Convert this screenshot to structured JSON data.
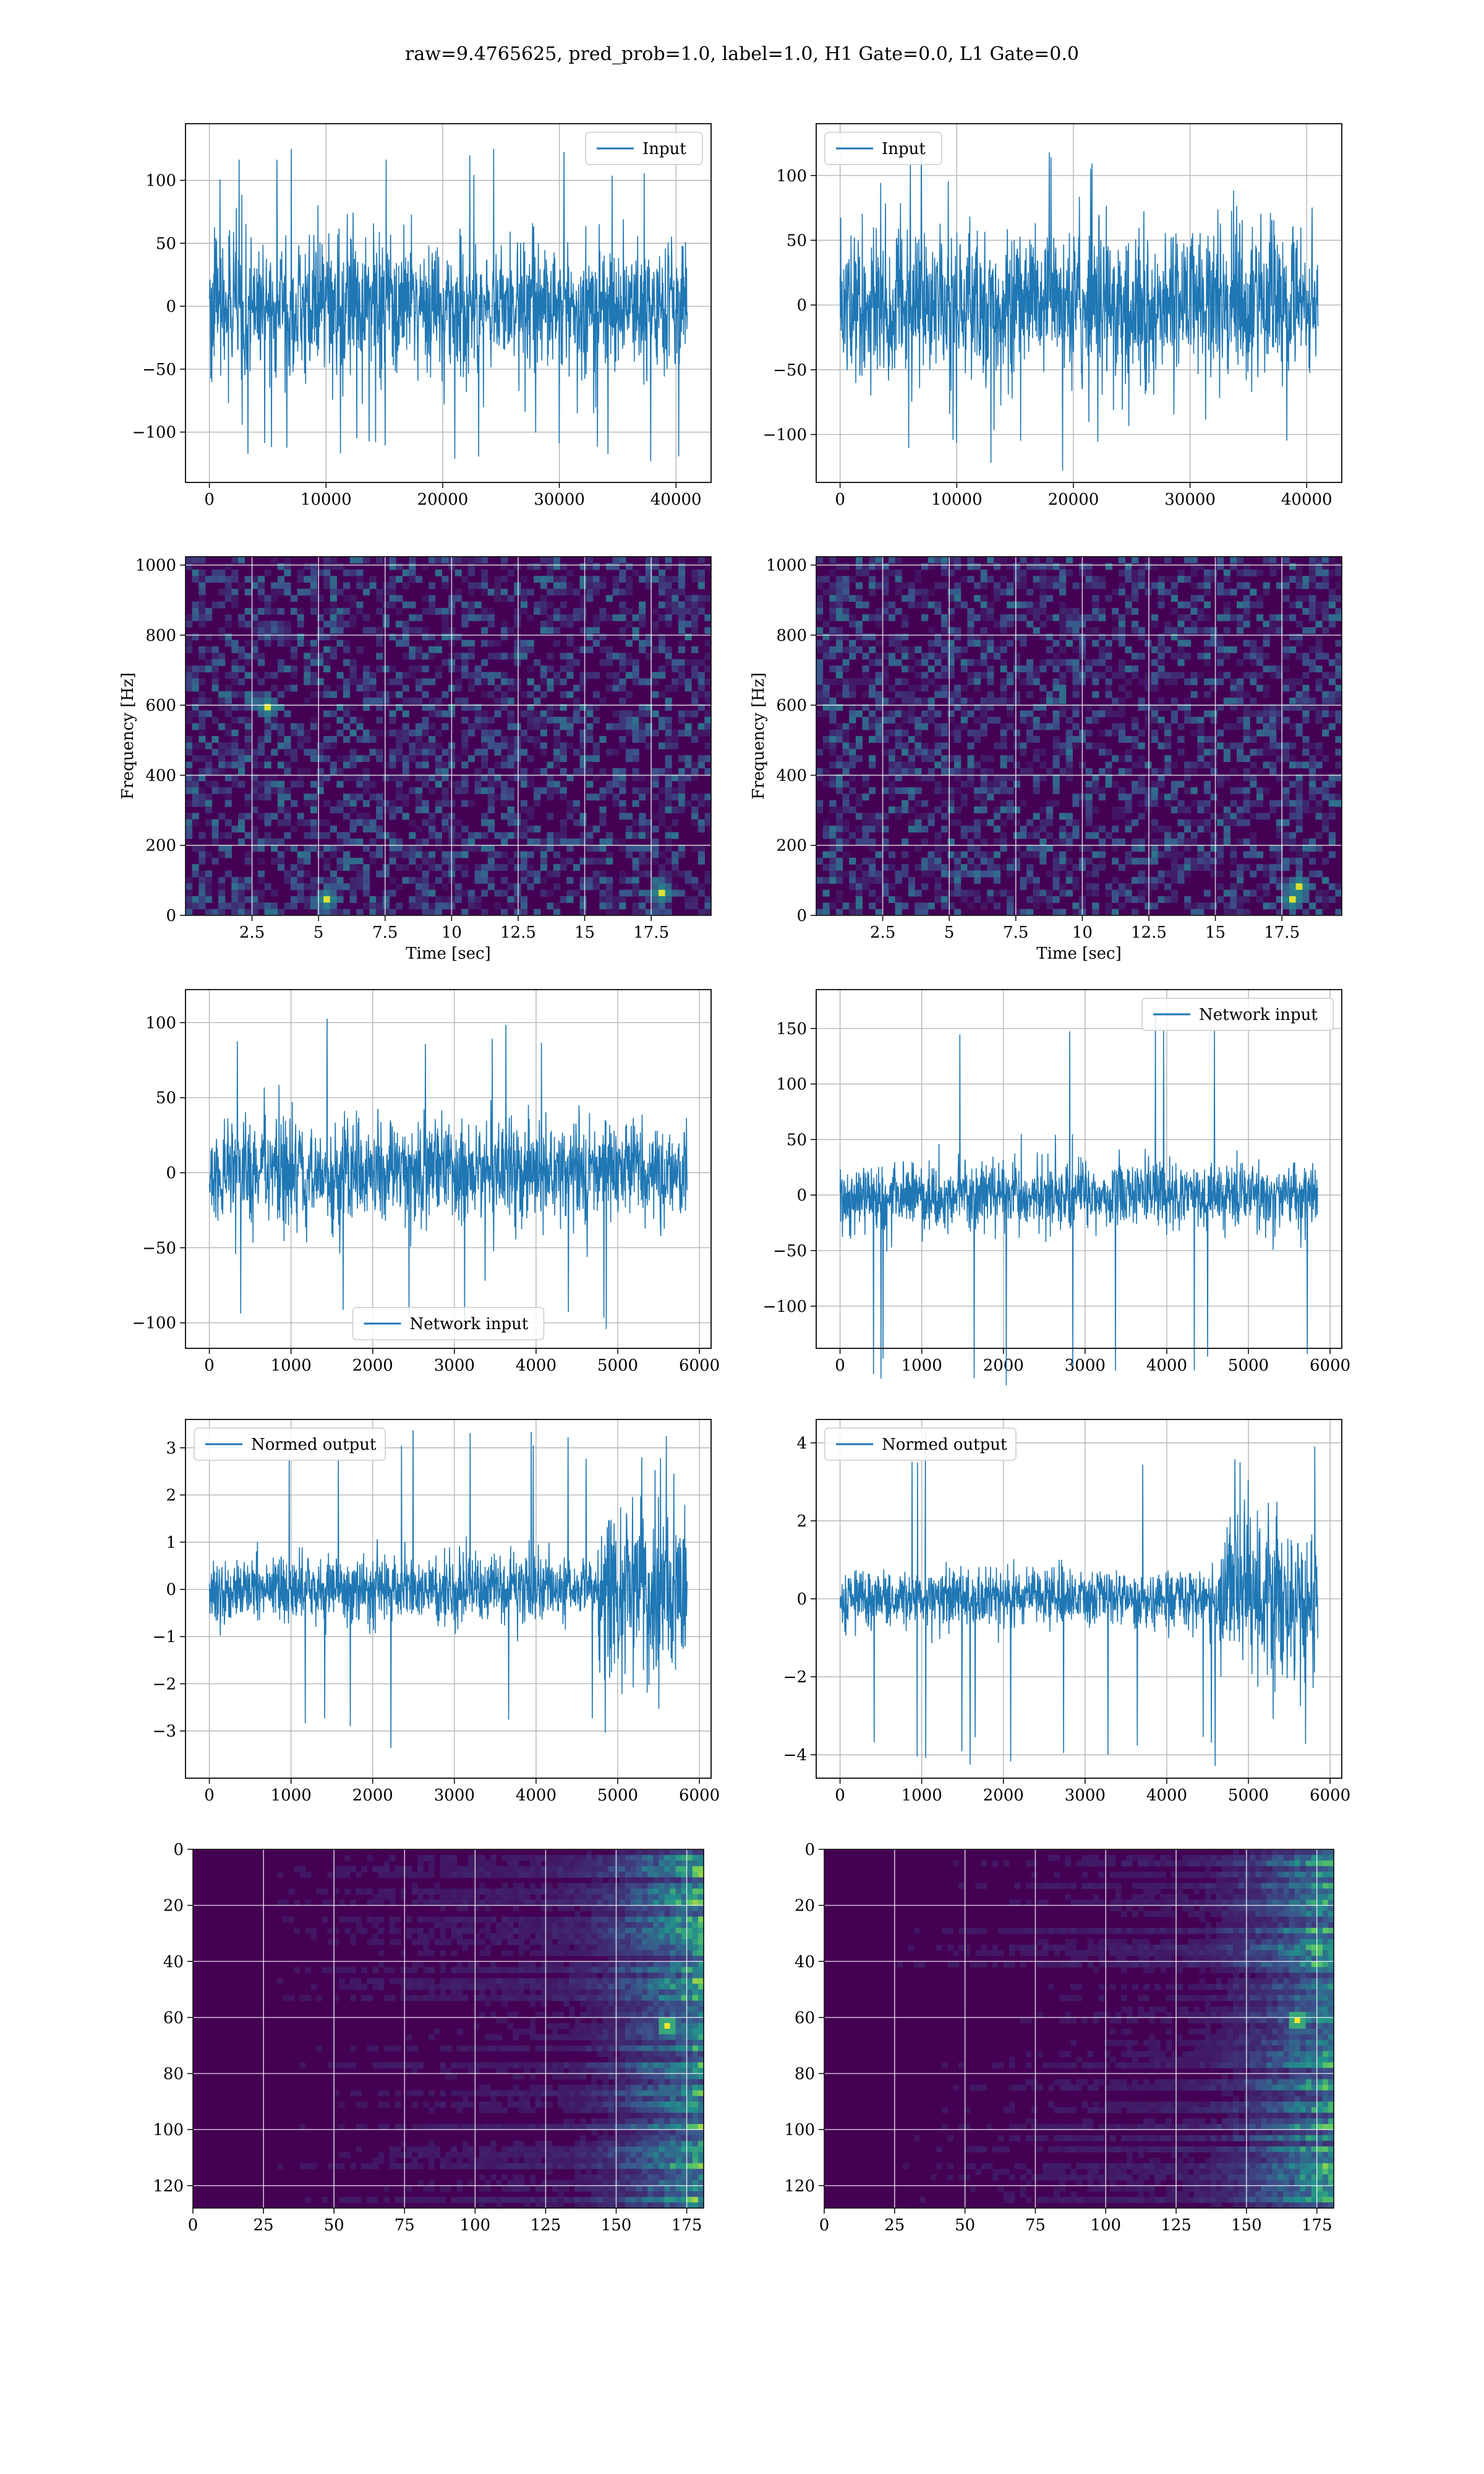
{
  "figure": {
    "title": "raw=9.4765625, pred_prob=1.0, label=1.0, H1 Gate=0.0, L1 Gate=0.0"
  },
  "colors": {
    "line": "#1f77b4",
    "viridis_dark": "#440154",
    "viridis_mid": "#21918c",
    "viridis_bright": "#fde725",
    "grid": "#b0b0b0"
  },
  "chart_data": [
    {
      "id": "input-h1",
      "type": "line",
      "row": 1,
      "col": 1,
      "series": [
        {
          "name": "Input",
          "x_range": [
            0,
            40960
          ],
          "amplitude_typical": 70,
          "amplitude_peak": 125
        }
      ],
      "xlim": [
        -2048,
        43008
      ],
      "ylim": [
        -140,
        145
      ],
      "xticks": [
        0,
        10000,
        20000,
        30000,
        40000
      ],
      "yticks": [
        -100,
        -50,
        0,
        50,
        100
      ],
      "xlabel": "",
      "ylabel": "",
      "grid": true,
      "legend": "upper right"
    },
    {
      "id": "input-l1",
      "type": "line",
      "row": 1,
      "col": 2,
      "series": [
        {
          "name": "Input",
          "x_range": [
            0,
            40960
          ],
          "amplitude_typical": 75,
          "amplitude_peak": 130
        }
      ],
      "xlim": [
        -2048,
        43008
      ],
      "ylim": [
        -137,
        140
      ],
      "xticks": [
        0,
        10000,
        20000,
        30000,
        40000
      ],
      "yticks": [
        -100,
        -50,
        0,
        50,
        100
      ],
      "xlabel": "",
      "ylabel": "",
      "grid": true,
      "legend": "upper left"
    },
    {
      "id": "spectrogram-h1",
      "type": "heatmap",
      "row": 2,
      "col": 1,
      "xlim": [
        0.0,
        19.75
      ],
      "ylim": [
        0,
        1024
      ],
      "xticks": [
        2.5,
        5.0,
        7.5,
        10.0,
        12.5,
        15.0,
        17.5
      ],
      "yticks": [
        0,
        200,
        400,
        600,
        800,
        1000
      ],
      "xlabel": "Time [sec]",
      "ylabel": "Frequency [Hz]",
      "grid": true,
      "hotspots": [
        {
          "t": 5.2,
          "f": 40
        },
        {
          "t": 18.0,
          "f": 60
        },
        {
          "t": 3.0,
          "f": 600
        }
      ]
    },
    {
      "id": "spectrogram-l1",
      "type": "heatmap",
      "row": 2,
      "col": 2,
      "xlim": [
        0.0,
        19.75
      ],
      "ylim": [
        0,
        1024
      ],
      "xticks": [
        2.5,
        5.0,
        7.5,
        10.0,
        12.5,
        15.0,
        17.5
      ],
      "yticks": [
        0,
        200,
        400,
        600,
        800,
        1000
      ],
      "xlabel": "Time [sec]",
      "ylabel": "Frequency [Hz]",
      "grid": true,
      "hotspots": [
        {
          "t": 18.0,
          "f": 50
        },
        {
          "t": 18.1,
          "f": 90
        }
      ]
    },
    {
      "id": "network-input-h1",
      "type": "line",
      "row": 3,
      "col": 1,
      "series": [
        {
          "name": "Network input",
          "x_range": [
            0,
            5850
          ],
          "amplitude_typical": 45,
          "amplitude_peak": 105
        }
      ],
      "xlim": [
        -292,
        6143
      ],
      "ylim": [
        -117,
        122
      ],
      "xticks": [
        0,
        1000,
        2000,
        3000,
        4000,
        5000,
        6000
      ],
      "yticks": [
        -100,
        -50,
        0,
        50,
        100
      ],
      "xlabel": "",
      "ylabel": "",
      "grid": true,
      "legend": "lower center"
    },
    {
      "id": "network-input-l1",
      "type": "line",
      "row": 3,
      "col": 2,
      "series": [
        {
          "name": "Network input",
          "x_range": [
            0,
            5850
          ],
          "amplitude_typical": 40,
          "amplitude_peak": 175
        }
      ],
      "xlim": [
        -292,
        6143
      ],
      "ylim": [
        -138,
        185
      ],
      "xticks": [
        0,
        1000,
        2000,
        3000,
        4000,
        5000,
        6000
      ],
      "yticks": [
        -100,
        -50,
        0,
        50,
        100,
        150
      ],
      "xlabel": "",
      "ylabel": "",
      "grid": true,
      "legend": "upper right"
    },
    {
      "id": "normed-output-h1",
      "type": "line",
      "row": 4,
      "col": 1,
      "series": [
        {
          "name": "Normed output",
          "x_range": [
            0,
            5850
          ],
          "amplitude_typical": 0.9,
          "amplitude_peak": 3.4,
          "burst_start": 4750
        }
      ],
      "xlim": [
        -292,
        6143
      ],
      "ylim": [
        -4.0,
        3.6
      ],
      "xticks": [
        0,
        1000,
        2000,
        3000,
        4000,
        5000,
        6000
      ],
      "yticks": [
        -3,
        -2,
        -1,
        0,
        1,
        2,
        3
      ],
      "xlabel": "",
      "ylabel": "",
      "grid": true,
      "legend": "upper left"
    },
    {
      "id": "normed-output-l1",
      "type": "line",
      "row": 4,
      "col": 2,
      "series": [
        {
          "name": "Normed output",
          "x_range": [
            0,
            5850
          ],
          "amplitude_typical": 1.0,
          "amplitude_peak": 4.3,
          "burst_start": 4650
        }
      ],
      "xlim": [
        -292,
        6143
      ],
      "ylim": [
        -4.6,
        4.6
      ],
      "xticks": [
        0,
        1000,
        2000,
        3000,
        4000,
        5000,
        6000
      ],
      "yticks": [
        -4,
        -2,
        0,
        2,
        4
      ],
      "xlabel": "",
      "ylabel": "",
      "grid": true,
      "legend": "upper left"
    },
    {
      "id": "feature-map-h1",
      "type": "heatmap",
      "row": 5,
      "col": 1,
      "xlim": [
        0,
        181
      ],
      "ylim": [
        128,
        0
      ],
      "xticks": [
        0,
        25,
        50,
        75,
        100,
        125,
        150,
        175
      ],
      "yticks": [
        0,
        20,
        40,
        60,
        80,
        100,
        120
      ],
      "xlabel": "",
      "ylabel": "",
      "grid": true,
      "hotspots": [
        {
          "x": 168,
          "y": 62
        }
      ]
    },
    {
      "id": "feature-map-l1",
      "type": "heatmap",
      "row": 5,
      "col": 2,
      "xlim": [
        0,
        181
      ],
      "ylim": [
        128,
        0
      ],
      "xticks": [
        0,
        25,
        50,
        75,
        100,
        125,
        150,
        175
      ],
      "yticks": [
        0,
        20,
        40,
        60,
        80,
        100,
        120
      ],
      "xlabel": "",
      "ylabel": "",
      "grid": true,
      "hotspots": [
        {
          "x": 168,
          "y": 60
        }
      ]
    }
  ]
}
